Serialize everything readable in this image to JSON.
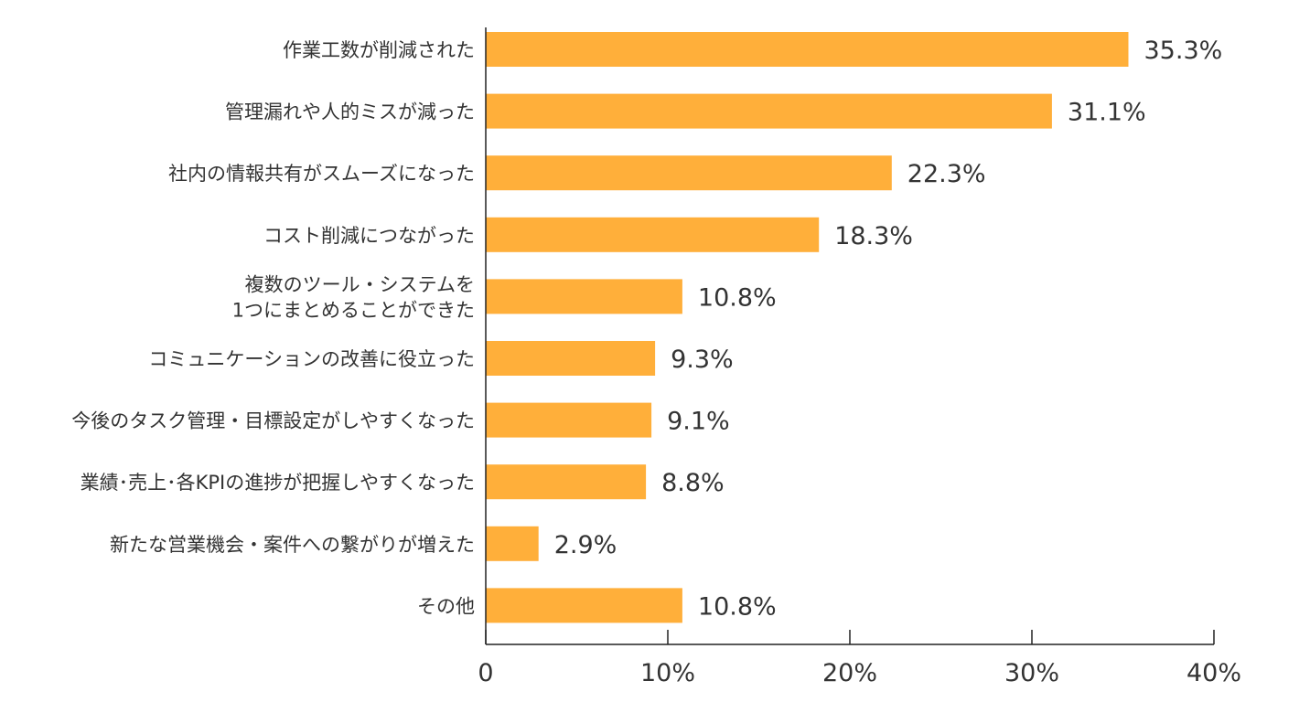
{
  "chart_data": {
    "type": "bar",
    "orientation": "horizontal",
    "categories": [
      [
        "作業工数が削減された"
      ],
      [
        "管理漏れや人的ミスが減った"
      ],
      [
        "社内の情報共有がスムーズになった"
      ],
      [
        "コスト削減につながった"
      ],
      [
        "複数のツール・システムを",
        "1つにまとめることができた"
      ],
      [
        "コミュニケーションの改善に役立った"
      ],
      [
        "今後のタスク管理・目標設定がしやすくなった"
      ],
      [
        "業績･売上･各KPIの進捗が把握しやすくなった"
      ],
      [
        "新たな営業機会・案件への繋がりが増えた"
      ],
      [
        "その他"
      ]
    ],
    "values": [
      35.3,
      31.1,
      22.3,
      18.3,
      10.8,
      9.3,
      9.1,
      8.8,
      2.9,
      10.8
    ],
    "value_labels": [
      "35.3%",
      "31.1%",
      "22.3%",
      "18.3%",
      "10.8%",
      "9.3%",
      "9.1%",
      "8.8%",
      "2.9%",
      "10.8%"
    ],
    "xlim": [
      0,
      40
    ],
    "xticks": [
      0,
      10,
      20,
      30,
      40
    ],
    "xtick_labels": [
      "0",
      "10%",
      "20%",
      "30%",
      "40%"
    ],
    "title": "",
    "xlabel": "",
    "ylabel": "",
    "grid": false,
    "legend": "none",
    "bar_color": "#FFAF3A",
    "axis_color": "#222222"
  }
}
